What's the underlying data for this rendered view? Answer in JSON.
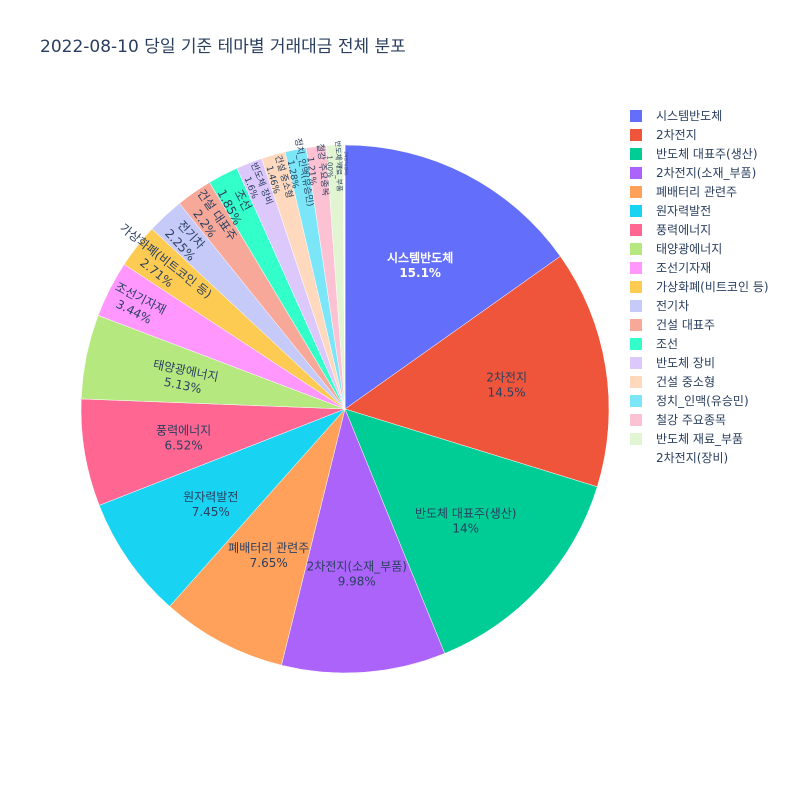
{
  "title": "2022-08-10 당일 기준 테마별 거래대금 전체 분포",
  "chart_data": {
    "type": "pie",
    "legend_position": "right",
    "direction": "clockwise",
    "slices": [
      {
        "label": "시스템반도체",
        "value": 15.1,
        "pct_text": "15.1%",
        "color": "#636efa"
      },
      {
        "label": "2차전지",
        "value": 14.5,
        "pct_text": "14.5%",
        "color": "#ef553b"
      },
      {
        "label": "반도체 대표주(생산)",
        "value": 14.0,
        "pct_text": "14%",
        "color": "#00cc96"
      },
      {
        "label": "2차전지(소재_부품)",
        "value": 9.98,
        "pct_text": "9.98%",
        "color": "#ab63fa"
      },
      {
        "label": "폐배터리 관련주",
        "value": 7.65,
        "pct_text": "7.65%",
        "color": "#ffa15a"
      },
      {
        "label": "원자력발전",
        "value": 7.45,
        "pct_text": "7.45%",
        "color": "#19d3f3"
      },
      {
        "label": "풍력에너지",
        "value": 6.52,
        "pct_text": "6.52%",
        "color": "#ff6692"
      },
      {
        "label": "태양광에너지",
        "value": 5.13,
        "pct_text": "5.13%",
        "color": "#b6e880"
      },
      {
        "label": "조선기자재",
        "value": 3.44,
        "pct_text": "3.44%",
        "color": "#ff97ff"
      },
      {
        "label": "가상화폐(비트코인 등)",
        "value": 2.71,
        "pct_text": "2.71%",
        "color": "#fecb52"
      },
      {
        "label": "전기차",
        "value": 2.25,
        "pct_text": "2.25%",
        "color": "#c6caf9"
      },
      {
        "label": "건설 대표주",
        "value": 2.2,
        "pct_text": "2.2%",
        "color": "#f8a899"
      },
      {
        "label": "조선",
        "value": 1.85,
        "pct_text": "1.85%",
        "color": "#33ffca"
      },
      {
        "label": "반도체 장비",
        "value": 1.6,
        "pct_text": "1.6%",
        "color": "#ddc8fc"
      },
      {
        "label": "건설 중소형",
        "value": 1.46,
        "pct_text": "1.46%",
        "color": "#ffd9bd"
      },
      {
        "label": "정치_인맥(유승민)",
        "value": 1.28,
        "pct_text": "1.28%",
        "color": "#7be6f8"
      },
      {
        "label": "철강 주요종목",
        "value": 1.21,
        "pct_text": "1.21%",
        "color": "#fcc2d3"
      },
      {
        "label": "반도체 재료_부품",
        "value": 1.0,
        "pct_text": "1.00%",
        "color": "#e2f5d2"
      },
      {
        "label": "2차전지(장비)",
        "value": 0.13,
        "pct_text": "0.13%",
        "color": "#ffffff"
      }
    ]
  }
}
